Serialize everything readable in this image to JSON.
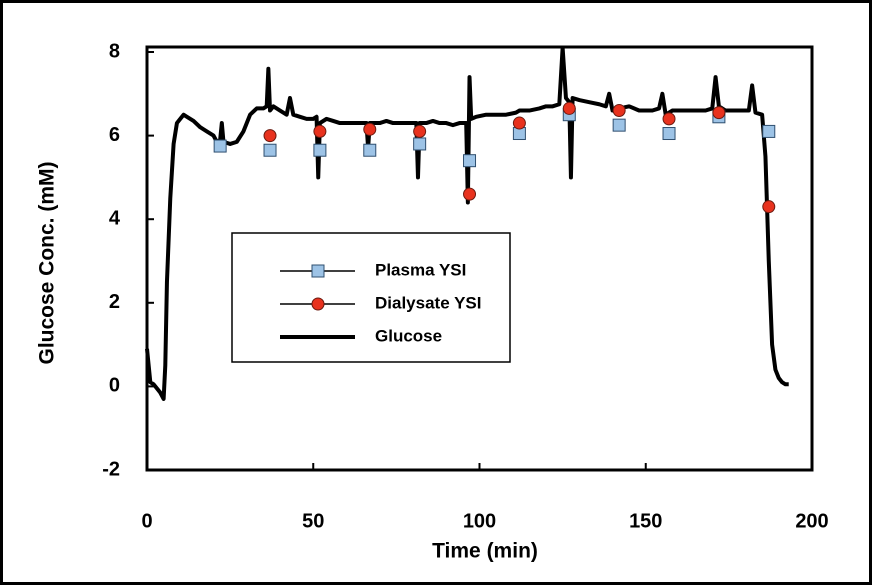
{
  "chart_data": {
    "type": "line",
    "xlabel": "Time (min)",
    "ylabel": "Glucose Conc. (mM)",
    "xlim": [
      0,
      200
    ],
    "ylim": [
      -2,
      8
    ],
    "xticks": [
      0,
      50,
      100,
      150,
      200
    ],
    "yticks": [
      -2,
      0,
      2,
      4,
      6,
      8
    ],
    "legend": "center-left",
    "series": [
      {
        "name": "Plasma YSI",
        "mode": "markers",
        "marker": "square",
        "color": "#9dc3e6",
        "x": [
          22,
          37,
          52,
          67,
          82,
          97,
          112,
          127,
          142,
          157,
          172,
          187
        ],
        "values": [
          5.75,
          5.65,
          5.65,
          5.65,
          5.8,
          5.4,
          6.05,
          6.5,
          6.25,
          6.05,
          6.45,
          6.1
        ]
      },
      {
        "name": "Dialysate YSI",
        "mode": "markers",
        "marker": "circle",
        "color": "#e8321e",
        "x": [
          37,
          52,
          67,
          82,
          97,
          112,
          127,
          142,
          157,
          172,
          187
        ],
        "values": [
          6.0,
          6.1,
          6.15,
          6.1,
          4.6,
          6.3,
          6.65,
          6.6,
          6.4,
          6.55,
          4.3
        ]
      },
      {
        "name": "Glucose",
        "mode": "line",
        "color": "#000000",
        "x": [
          0,
          1,
          2,
          4,
          5,
          5.5,
          6,
          7,
          8,
          9,
          10,
          11,
          12,
          14,
          16,
          18,
          20,
          21,
          22,
          22.5,
          23,
          25,
          27,
          29,
          31,
          33,
          35,
          36,
          36.5,
          37,
          38,
          40,
          42,
          43,
          44,
          46,
          48,
          50,
          51,
          51.5,
          52,
          54,
          56,
          58,
          60,
          62,
          64,
          66,
          66.5,
          67,
          70,
          72,
          74,
          76,
          78,
          80,
          81,
          81.5,
          82,
          84,
          86,
          88,
          90,
          92,
          94,
          96,
          96.5,
          97,
          97.5,
          99,
          102,
          105,
          108,
          111,
          112,
          115,
          118,
          120,
          122,
          124,
          125,
          126,
          127,
          127.5,
          128,
          130,
          133,
          136,
          138,
          139,
          140,
          142,
          145,
          148,
          150,
          152,
          154,
          155,
          156,
          158,
          160,
          163,
          166,
          168,
          170,
          171,
          172,
          174,
          176,
          178,
          181,
          182,
          183,
          185,
          186,
          187,
          188,
          189,
          190,
          191,
          192,
          193
        ],
        "values": [
          0.9,
          0.1,
          0.05,
          -0.15,
          -0.3,
          0.5,
          2.5,
          4.5,
          5.8,
          6.3,
          6.4,
          6.5,
          6.45,
          6.35,
          6.2,
          6.1,
          6.0,
          5.85,
          5.9,
          6.3,
          5.85,
          5.8,
          5.85,
          6.1,
          6.5,
          6.65,
          6.65,
          6.7,
          7.6,
          6.6,
          6.7,
          6.6,
          6.5,
          6.9,
          6.5,
          6.45,
          6.4,
          6.4,
          6.45,
          5.0,
          6.3,
          6.4,
          6.35,
          6.3,
          6.3,
          6.3,
          6.3,
          6.3,
          5.7,
          6.3,
          6.3,
          6.35,
          6.3,
          6.3,
          6.3,
          6.3,
          6.3,
          5.0,
          6.3,
          6.3,
          6.35,
          6.3,
          6.3,
          6.25,
          6.3,
          6.3,
          4.4,
          7.4,
          6.4,
          6.45,
          6.5,
          6.5,
          6.5,
          6.55,
          6.6,
          6.6,
          6.65,
          6.7,
          6.7,
          6.75,
          8.1,
          6.9,
          6.8,
          5.0,
          6.9,
          6.85,
          6.8,
          6.75,
          6.7,
          7.0,
          6.6,
          6.65,
          6.7,
          6.6,
          6.6,
          6.6,
          6.65,
          7.0,
          6.5,
          6.6,
          6.6,
          6.6,
          6.6,
          6.6,
          6.65,
          7.4,
          6.7,
          6.6,
          6.6,
          6.6,
          6.6,
          7.2,
          6.55,
          6.5,
          5.5,
          3.0,
          1.0,
          0.4,
          0.2,
          0.1,
          0.05,
          0.05
        ]
      }
    ]
  }
}
